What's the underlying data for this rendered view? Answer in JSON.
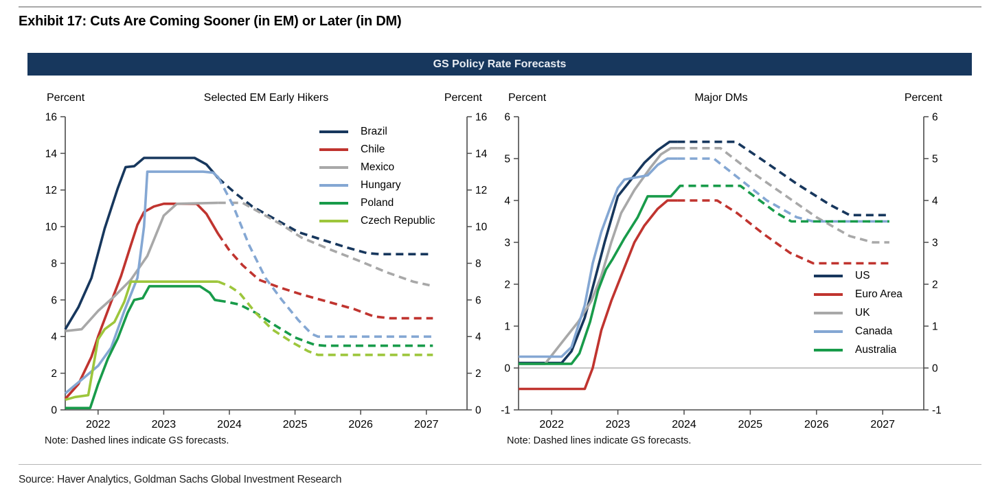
{
  "page": {
    "exhibit_title": "Exhibit 17: Cuts Are Coming Sooner (in EM) or Later (in DM)",
    "banner_title": "GS Policy Rate Forecasts",
    "banner_color": "#17375D",
    "source_text": "Source: Haver Analytics, Goldman Sachs Global Investment Research"
  },
  "chart_data": [
    {
      "type": "line",
      "title": "Selected EM Early Hikers",
      "ylabel_left": "Percent",
      "ylabel_right": "Percent",
      "note": "Note: Dashed lines indicate GS forecasts.",
      "ylim": [
        0,
        16
      ],
      "ytick_step": 2,
      "xlim": [
        2021.5,
        2027.62
      ],
      "xticks": [
        2022,
        2023,
        2024,
        2025,
        2026,
        2027
      ],
      "zero_line": false,
      "grid": false,
      "legend_position": "upper-right",
      "forecast_from": 2023.83,
      "forecast_style": "dashed",
      "series": [
        {
          "name": "Brazil",
          "color": "#17375D",
          "points": [
            [
              2021.5,
              4.4
            ],
            [
              2021.7,
              5.6
            ],
            [
              2021.9,
              7.2
            ],
            [
              2022.1,
              9.9
            ],
            [
              2022.3,
              12.1
            ],
            [
              2022.42,
              13.25
            ],
            [
              2022.55,
              13.3
            ],
            [
              2022.7,
              13.75
            ],
            [
              2023.47,
              13.75
            ],
            [
              2023.65,
              13.4
            ],
            [
              2023.83,
              12.65
            ],
            [
              2024.1,
              11.8
            ],
            [
              2024.35,
              11.1
            ],
            [
              2024.7,
              10.4
            ],
            [
              2025.05,
              9.7
            ],
            [
              2025.4,
              9.3
            ],
            [
              2025.8,
              8.85
            ],
            [
              2026.1,
              8.55
            ],
            [
              2026.3,
              8.5
            ],
            [
              2027.1,
              8.5
            ]
          ]
        },
        {
          "name": "Chile",
          "color": "#C0342F",
          "points": [
            [
              2021.5,
              0.6
            ],
            [
              2021.7,
              1.4
            ],
            [
              2021.9,
              2.9
            ],
            [
              2022.0,
              4.0
            ],
            [
              2022.2,
              5.9
            ],
            [
              2022.35,
              7.3
            ],
            [
              2022.5,
              9.0
            ],
            [
              2022.6,
              10.1
            ],
            [
              2022.7,
              10.8
            ],
            [
              2022.85,
              11.1
            ],
            [
              2023.0,
              11.25
            ],
            [
              2023.5,
              11.25
            ],
            [
              2023.65,
              10.7
            ],
            [
              2023.83,
              9.6
            ],
            [
              2024.0,
              8.7
            ],
            [
              2024.2,
              7.9
            ],
            [
              2024.45,
              7.1
            ],
            [
              2024.75,
              6.7
            ],
            [
              2025.1,
              6.3
            ],
            [
              2025.5,
              5.9
            ],
            [
              2025.9,
              5.5
            ],
            [
              2026.2,
              5.1
            ],
            [
              2026.45,
              5.0
            ],
            [
              2027.1,
              5.0
            ]
          ]
        },
        {
          "name": "Mexico",
          "color": "#A8A8A8",
          "points": [
            [
              2021.5,
              4.3
            ],
            [
              2021.75,
              4.4
            ],
            [
              2022.0,
              5.4
            ],
            [
              2022.25,
              6.2
            ],
            [
              2022.5,
              7.1
            ],
            [
              2022.75,
              8.4
            ],
            [
              2023.0,
              10.6
            ],
            [
              2023.2,
              11.25
            ],
            [
              2023.83,
              11.3
            ],
            [
              2024.2,
              11.3
            ],
            [
              2024.5,
              10.7
            ],
            [
              2024.8,
              10.1
            ],
            [
              2025.1,
              9.4
            ],
            [
              2025.5,
              8.8
            ],
            [
              2026.0,
              8.1
            ],
            [
              2026.4,
              7.5
            ],
            [
              2026.8,
              7.0
            ],
            [
              2027.05,
              6.8
            ]
          ]
        },
        {
          "name": "Hungary",
          "color": "#84A7D3",
          "points": [
            [
              2021.5,
              0.9
            ],
            [
              2021.8,
              1.8
            ],
            [
              2022.0,
              2.4
            ],
            [
              2022.2,
              3.4
            ],
            [
              2022.4,
              5.4
            ],
            [
              2022.6,
              7.2
            ],
            [
              2022.7,
              10.0
            ],
            [
              2022.75,
              13.0
            ],
            [
              2023.6,
              13.0
            ],
            [
              2023.75,
              12.95
            ],
            [
              2023.83,
              12.7
            ],
            [
              2024.05,
              11.2
            ],
            [
              2024.3,
              9.0
            ],
            [
              2024.55,
              7.2
            ],
            [
              2024.8,
              6.0
            ],
            [
              2025.05,
              4.9
            ],
            [
              2025.25,
              4.15
            ],
            [
              2025.35,
              4.0
            ],
            [
              2027.1,
              4.0
            ]
          ]
        },
        {
          "name": "Poland",
          "color": "#189B4A",
          "points": [
            [
              2021.5,
              0.1
            ],
            [
              2021.88,
              0.1
            ],
            [
              2022.0,
              1.4
            ],
            [
              2022.15,
              2.8
            ],
            [
              2022.3,
              3.9
            ],
            [
              2022.45,
              5.3
            ],
            [
              2022.55,
              6.0
            ],
            [
              2022.68,
              6.1
            ],
            [
              2022.78,
              6.75
            ],
            [
              2023.55,
              6.75
            ],
            [
              2023.7,
              6.4
            ],
            [
              2023.78,
              6.0
            ],
            [
              2023.95,
              5.9
            ],
            [
              2024.15,
              5.75
            ],
            [
              2024.4,
              5.3
            ],
            [
              2024.7,
              4.6
            ],
            [
              2025.0,
              3.95
            ],
            [
              2025.3,
              3.55
            ],
            [
              2025.45,
              3.5
            ],
            [
              2027.1,
              3.5
            ]
          ]
        },
        {
          "name": "Czech Republic",
          "color": "#9DC63C",
          "points": [
            [
              2021.5,
              0.55
            ],
            [
              2021.65,
              0.7
            ],
            [
              2021.85,
              0.8
            ],
            [
              2022.0,
              3.85
            ],
            [
              2022.1,
              4.4
            ],
            [
              2022.25,
              4.8
            ],
            [
              2022.4,
              5.9
            ],
            [
              2022.5,
              7.0
            ],
            [
              2023.83,
              7.0
            ],
            [
              2024.0,
              6.75
            ],
            [
              2024.15,
              6.4
            ],
            [
              2024.4,
              5.3
            ],
            [
              2024.65,
              4.4
            ],
            [
              2024.95,
              3.7
            ],
            [
              2025.2,
              3.2
            ],
            [
              2025.35,
              3.0
            ],
            [
              2027.1,
              3.0
            ]
          ]
        }
      ]
    },
    {
      "type": "line",
      "title": "Major DMs",
      "ylabel_left": "Percent",
      "ylabel_right": "Percent",
      "note": "Note: Dashed lines indicate GS forecasts.",
      "ylim": [
        -1,
        6
      ],
      "ytick_step": 1,
      "xlim": [
        2021.5,
        2027.62
      ],
      "xticks": [
        2022,
        2023,
        2024,
        2025,
        2026,
        2027
      ],
      "zero_line": true,
      "grid": false,
      "legend_position": "lower-right",
      "forecast_from": 2023.9,
      "forecast_style": "dashed",
      "series": [
        {
          "name": "US",
          "color": "#17375D",
          "points": [
            [
              2021.5,
              0.12
            ],
            [
              2022.15,
              0.12
            ],
            [
              2022.3,
              0.4
            ],
            [
              2022.5,
              1.2
            ],
            [
              2022.65,
              2.1
            ],
            [
              2022.8,
              3.0
            ],
            [
              2023.0,
              4.1
            ],
            [
              2023.15,
              4.4
            ],
            [
              2023.4,
              4.9
            ],
            [
              2023.6,
              5.2
            ],
            [
              2023.78,
              5.4
            ],
            [
              2024.78,
              5.4
            ],
            [
              2025.2,
              4.95
            ],
            [
              2025.7,
              4.4
            ],
            [
              2026.2,
              3.9
            ],
            [
              2026.5,
              3.65
            ],
            [
              2027.1,
              3.65
            ]
          ]
        },
        {
          "name": "Euro Area",
          "color": "#C0342F",
          "points": [
            [
              2021.5,
              -0.5
            ],
            [
              2022.5,
              -0.5
            ],
            [
              2022.62,
              0.0
            ],
            [
              2022.75,
              0.9
            ],
            [
              2022.9,
              1.6
            ],
            [
              2023.05,
              2.2
            ],
            [
              2023.25,
              3.0
            ],
            [
              2023.4,
              3.4
            ],
            [
              2023.6,
              3.8
            ],
            [
              2023.75,
              4.0
            ],
            [
              2024.5,
              4.0
            ],
            [
              2024.8,
              3.7
            ],
            [
              2025.2,
              3.2
            ],
            [
              2025.6,
              2.75
            ],
            [
              2025.95,
              2.5
            ],
            [
              2027.1,
              2.5
            ]
          ]
        },
        {
          "name": "UK",
          "color": "#A8A8A8",
          "points": [
            [
              2021.5,
              0.1
            ],
            [
              2021.9,
              0.1
            ],
            [
              2022.0,
              0.3
            ],
            [
              2022.2,
              0.7
            ],
            [
              2022.4,
              1.1
            ],
            [
              2022.6,
              1.6
            ],
            [
              2022.75,
              2.2
            ],
            [
              2022.9,
              3.0
            ],
            [
              2023.05,
              3.7
            ],
            [
              2023.25,
              4.25
            ],
            [
              2023.5,
              4.8
            ],
            [
              2023.65,
              5.1
            ],
            [
              2023.8,
              5.25
            ],
            [
              2024.55,
              5.25
            ],
            [
              2025.0,
              4.7
            ],
            [
              2025.5,
              4.15
            ],
            [
              2026.0,
              3.6
            ],
            [
              2026.5,
              3.15
            ],
            [
              2026.85,
              3.0
            ],
            [
              2027.1,
              3.0
            ]
          ]
        },
        {
          "name": "Canada",
          "color": "#84A7D3",
          "points": [
            [
              2021.5,
              0.27
            ],
            [
              2022.15,
              0.27
            ],
            [
              2022.3,
              0.5
            ],
            [
              2022.4,
              1.0
            ],
            [
              2022.5,
              1.5
            ],
            [
              2022.62,
              2.5
            ],
            [
              2022.75,
              3.25
            ],
            [
              2022.9,
              3.9
            ],
            [
              2023.0,
              4.3
            ],
            [
              2023.1,
              4.5
            ],
            [
              2023.45,
              4.6
            ],
            [
              2023.6,
              4.85
            ],
            [
              2023.75,
              5.0
            ],
            [
              2024.45,
              5.0
            ],
            [
              2024.85,
              4.5
            ],
            [
              2025.25,
              4.0
            ],
            [
              2025.7,
              3.6
            ],
            [
              2025.95,
              3.5
            ],
            [
              2027.1,
              3.5
            ]
          ]
        },
        {
          "name": "Australia",
          "color": "#189B4A",
          "points": [
            [
              2021.5,
              0.1
            ],
            [
              2022.3,
              0.1
            ],
            [
              2022.42,
              0.35
            ],
            [
              2022.58,
              1.1
            ],
            [
              2022.7,
              1.85
            ],
            [
              2022.82,
              2.35
            ],
            [
              2022.92,
              2.6
            ],
            [
              2023.1,
              3.1
            ],
            [
              2023.3,
              3.6
            ],
            [
              2023.45,
              4.1
            ],
            [
              2023.8,
              4.1
            ],
            [
              2023.94,
              4.35
            ],
            [
              2024.85,
              4.35
            ],
            [
              2025.1,
              4.05
            ],
            [
              2025.4,
              3.7
            ],
            [
              2025.62,
              3.5
            ],
            [
              2027.1,
              3.5
            ]
          ]
        }
      ]
    }
  ]
}
